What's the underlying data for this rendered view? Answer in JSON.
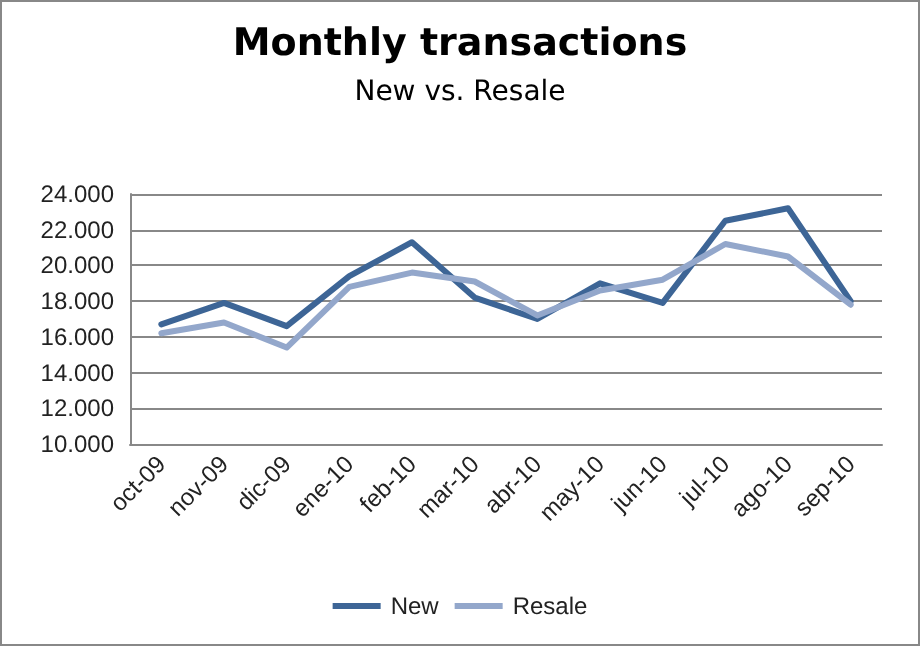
{
  "chart_data": {
    "type": "line",
    "title": "Monthly transactions",
    "subtitle": "New vs. Resale",
    "categories": [
      "oct-09",
      "nov-09",
      "dic-09",
      "ene-10",
      "feb-10",
      "mar-10",
      "abr-10",
      "may-10",
      "jun-10",
      "jul-10",
      "ago-10",
      "sep-10"
    ],
    "series": [
      {
        "name": "New",
        "color": "#3d6596",
        "values": [
          16700,
          17900,
          16600,
          19400,
          21300,
          18200,
          17000,
          19000,
          17900,
          22500,
          23200,
          18000
        ]
      },
      {
        "name": "Resale",
        "color": "#93a7cb",
        "values": [
          16200,
          16800,
          15400,
          18800,
          19600,
          19100,
          17200,
          18600,
          19200,
          21200,
          20500,
          17800
        ]
      }
    ],
    "ylim": [
      10000,
      24000
    ],
    "yticks": [
      {
        "value": 10000,
        "label": "10.000"
      },
      {
        "value": 12000,
        "label": "12.000"
      },
      {
        "value": 14000,
        "label": "14.000"
      },
      {
        "value": 16000,
        "label": "16.000"
      },
      {
        "value": 18000,
        "label": "18.000"
      },
      {
        "value": 20000,
        "label": "20.000"
      },
      {
        "value": 22000,
        "label": "22.000"
      },
      {
        "value": 24000,
        "label": "24.000"
      }
    ],
    "grid": "y",
    "legend": "bottom",
    "marker": "none",
    "line_style": "solid"
  }
}
